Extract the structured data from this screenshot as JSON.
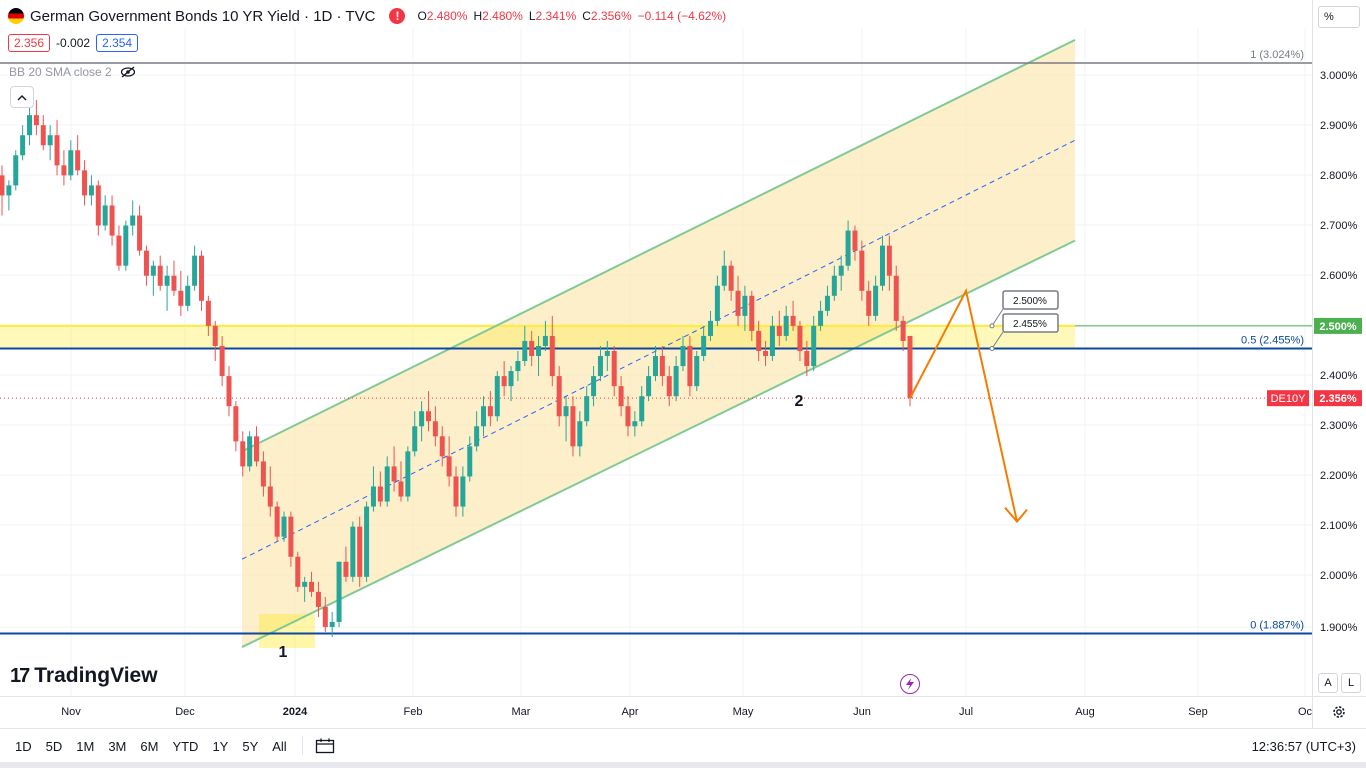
{
  "header": {
    "title": "German Government Bonds 10 YR Yield · 1D · TVC",
    "ohlc": [
      {
        "k": "O",
        "v": "2.480%"
      },
      {
        "k": "H",
        "v": "2.480%"
      },
      {
        "k": "L",
        "v": "2.341%"
      },
      {
        "k": "C",
        "v": "2.356%"
      }
    ],
    "change": "−0.114 (−4.62%)",
    "alert_glyph": "!"
  },
  "prices": {
    "bid": "2.356",
    "spread": "-0.002",
    "ask": "2.354"
  },
  "indicator": {
    "label": "BB 20 SMA close 2"
  },
  "logo": {
    "mark": "17",
    "text": "TradingView"
  },
  "scale": {
    "percent_button": "%",
    "auto_button": "A",
    "log_button": "L"
  },
  "timeframes": [
    "1D",
    "5D",
    "1M",
    "3M",
    "6M",
    "YTD",
    "1Y",
    "5Y",
    "All"
  ],
  "clock": "12:36:57 (UTC+3)",
  "icons": {
    "collapse": "chevron-up-icon",
    "gear": "gear-icon",
    "eye": "eye-off-icon",
    "calendar": "calendar-range-icon",
    "lightning": "lightning-icon"
  },
  "colors": {
    "up": "#26a69a",
    "down": "#ef5350",
    "channel": "#81c995",
    "channel_fill": "#fbe9b7",
    "zone": "#ffeb3b",
    "fib": "#0d47a1",
    "projection": "#f57c00",
    "last_price": "#f23645"
  },
  "chart_data": {
    "type": "candlestick",
    "y_axis_unit": "%",
    "y_ticks": [
      "3.000%",
      "2.900%",
      "2.800%",
      "2.700%",
      "2.600%",
      "2.500%",
      "2.400%",
      "2.300%",
      "2.200%",
      "2.100%",
      "2.000%",
      "1.900%"
    ],
    "x_ticks": [
      "Nov",
      "Dec",
      "2024",
      "Feb",
      "Mar",
      "Apr",
      "May",
      "Jun",
      "Jul",
      "Aug",
      "Sep",
      "Oc"
    ],
    "fib_levels": [
      {
        "label": "1 (3.024%)",
        "value": 3.024
      },
      {
        "label": "0.5 (2.455%)",
        "value": 2.455
      },
      {
        "label": "0 (1.887%)",
        "value": 1.887
      }
    ],
    "horizontal_tags": [
      {
        "label": "2.500%",
        "value": 2.5
      },
      {
        "label": "2.455%",
        "value": 2.455
      }
    ],
    "axis_tags": [
      {
        "label": "2.500%",
        "value": 2.5,
        "color": "#4caf50"
      },
      {
        "symbol": "DE10Y",
        "label": "2.356%",
        "value": 2.356,
        "color": "#f23645"
      }
    ],
    "point_labels": [
      {
        "text": "1"
      },
      {
        "text": "2"
      }
    ],
    "candles": [
      [
        2.8,
        2.82,
        2.72,
        2.76
      ],
      [
        2.76,
        2.79,
        2.73,
        2.78
      ],
      [
        2.78,
        2.85,
        2.77,
        2.84
      ],
      [
        2.84,
        2.9,
        2.83,
        2.88
      ],
      [
        2.88,
        2.94,
        2.86,
        2.92
      ],
      [
        2.92,
        2.95,
        2.88,
        2.9
      ],
      [
        2.9,
        2.92,
        2.85,
        2.86
      ],
      [
        2.86,
        2.9,
        2.83,
        2.88
      ],
      [
        2.88,
        2.91,
        2.8,
        2.82
      ],
      [
        2.82,
        2.85,
        2.78,
        2.8
      ],
      [
        2.8,
        2.87,
        2.79,
        2.85
      ],
      [
        2.85,
        2.88,
        2.8,
        2.81
      ],
      [
        2.81,
        2.83,
        2.74,
        2.76
      ],
      [
        2.76,
        2.8,
        2.74,
        2.78
      ],
      [
        2.78,
        2.79,
        2.68,
        2.7
      ],
      [
        2.7,
        2.76,
        2.69,
        2.74
      ],
      [
        2.74,
        2.76,
        2.66,
        2.68
      ],
      [
        2.68,
        2.7,
        2.61,
        2.62
      ],
      [
        2.62,
        2.71,
        2.61,
        2.7
      ],
      [
        2.7,
        2.75,
        2.68,
        2.72
      ],
      [
        2.72,
        2.74,
        2.64,
        2.65
      ],
      [
        2.65,
        2.66,
        2.58,
        2.6
      ],
      [
        2.6,
        2.63,
        2.56,
        2.62
      ],
      [
        2.62,
        2.64,
        2.57,
        2.58
      ],
      [
        2.58,
        2.62,
        2.53,
        2.6
      ],
      [
        2.6,
        2.63,
        2.56,
        2.57
      ],
      [
        2.57,
        2.61,
        2.52,
        2.54
      ],
      [
        2.54,
        2.6,
        2.53,
        2.58
      ],
      [
        2.58,
        2.66,
        2.57,
        2.64
      ],
      [
        2.64,
        2.65,
        2.53,
        2.55
      ],
      [
        2.55,
        2.56,
        2.48,
        2.5
      ],
      [
        2.5,
        2.51,
        2.43,
        2.46
      ],
      [
        2.46,
        2.48,
        2.38,
        2.4
      ],
      [
        2.4,
        2.42,
        2.32,
        2.34
      ],
      [
        2.34,
        2.35,
        2.25,
        2.27
      ],
      [
        2.27,
        2.29,
        2.2,
        2.22
      ],
      [
        2.22,
        2.29,
        2.21,
        2.28
      ],
      [
        2.28,
        2.3,
        2.22,
        2.23
      ],
      [
        2.23,
        2.25,
        2.16,
        2.18
      ],
      [
        2.18,
        2.22,
        2.12,
        2.14
      ],
      [
        2.14,
        2.15,
        2.07,
        2.08
      ],
      [
        2.08,
        2.13,
        2.07,
        2.12
      ],
      [
        2.12,
        2.13,
        2.02,
        2.04
      ],
      [
        2.04,
        2.05,
        1.97,
        1.98
      ],
      [
        1.98,
        2.0,
        1.95,
        1.99
      ],
      [
        1.99,
        2.01,
        1.96,
        1.97
      ],
      [
        1.97,
        1.99,
        1.92,
        1.94
      ],
      [
        1.94,
        1.96,
        1.89,
        1.9
      ],
      [
        1.9,
        1.93,
        1.88,
        1.91
      ],
      [
        1.91,
        2.03,
        1.9,
        2.03
      ],
      [
        2.03,
        2.06,
        1.99,
        2.0
      ],
      [
        2.0,
        2.11,
        1.99,
        2.1
      ],
      [
        2.1,
        2.12,
        1.98,
        2.0
      ],
      [
        2.0,
        2.15,
        1.99,
        2.14
      ],
      [
        2.14,
        2.22,
        2.13,
        2.18
      ],
      [
        2.18,
        2.21,
        2.14,
        2.15
      ],
      [
        2.15,
        2.24,
        2.14,
        2.22
      ],
      [
        2.22,
        2.26,
        2.17,
        2.19
      ],
      [
        2.19,
        2.23,
        2.15,
        2.16
      ],
      [
        2.16,
        2.26,
        2.15,
        2.25
      ],
      [
        2.25,
        2.33,
        2.24,
        2.3
      ],
      [
        2.3,
        2.35,
        2.27,
        2.33
      ],
      [
        2.33,
        2.37,
        2.29,
        2.31
      ],
      [
        2.31,
        2.34,
        2.26,
        2.28
      ],
      [
        2.28,
        2.3,
        2.22,
        2.24
      ],
      [
        2.24,
        2.28,
        2.18,
        2.2
      ],
      [
        2.2,
        2.22,
        2.12,
        2.14
      ],
      [
        2.14,
        2.22,
        2.12,
        2.2
      ],
      [
        2.2,
        2.28,
        2.19,
        2.26
      ],
      [
        2.26,
        2.33,
        2.25,
        2.3
      ],
      [
        2.3,
        2.36,
        2.28,
        2.34
      ],
      [
        2.34,
        2.37,
        2.3,
        2.32
      ],
      [
        2.32,
        2.41,
        2.31,
        2.4
      ],
      [
        2.4,
        2.43,
        2.36,
        2.38
      ],
      [
        2.38,
        2.42,
        2.35,
        2.41
      ],
      [
        2.41,
        2.45,
        2.39,
        2.43
      ],
      [
        2.43,
        2.5,
        2.42,
        2.47
      ],
      [
        2.47,
        2.49,
        2.42,
        2.44
      ],
      [
        2.44,
        2.48,
        2.4,
        2.46
      ],
      [
        2.46,
        2.51,
        2.45,
        2.48
      ],
      [
        2.48,
        2.52,
        2.38,
        2.4
      ],
      [
        2.4,
        2.42,
        2.3,
        2.32
      ],
      [
        2.32,
        2.36,
        2.27,
        2.34
      ],
      [
        2.34,
        2.36,
        2.24,
        2.26
      ],
      [
        2.26,
        2.33,
        2.24,
        2.31
      ],
      [
        2.31,
        2.38,
        2.3,
        2.36
      ],
      [
        2.36,
        2.42,
        2.34,
        2.4
      ],
      [
        2.4,
        2.46,
        2.39,
        2.44
      ],
      [
        2.44,
        2.47,
        2.41,
        2.45
      ],
      [
        2.45,
        2.46,
        2.36,
        2.38
      ],
      [
        2.38,
        2.4,
        2.32,
        2.34
      ],
      [
        2.34,
        2.36,
        2.28,
        2.3
      ],
      [
        2.3,
        2.33,
        2.28,
        2.31
      ],
      [
        2.31,
        2.38,
        2.3,
        2.36
      ],
      [
        2.36,
        2.42,
        2.35,
        2.4
      ],
      [
        2.4,
        2.46,
        2.39,
        2.44
      ],
      [
        2.44,
        2.46,
        2.38,
        2.4
      ],
      [
        2.4,
        2.42,
        2.34,
        2.36
      ],
      [
        2.36,
        2.44,
        2.35,
        2.42
      ],
      [
        2.42,
        2.48,
        2.41,
        2.46
      ],
      [
        2.46,
        2.48,
        2.36,
        2.38
      ],
      [
        2.38,
        2.45,
        2.37,
        2.44
      ],
      [
        2.44,
        2.5,
        2.43,
        2.48
      ],
      [
        2.48,
        2.53,
        2.47,
        2.51
      ],
      [
        2.51,
        2.6,
        2.5,
        2.58
      ],
      [
        2.58,
        2.65,
        2.57,
        2.62
      ],
      [
        2.62,
        2.63,
        2.55,
        2.57
      ],
      [
        2.57,
        2.6,
        2.5,
        2.52
      ],
      [
        2.52,
        2.58,
        2.49,
        2.56
      ],
      [
        2.56,
        2.57,
        2.47,
        2.49
      ],
      [
        2.49,
        2.51,
        2.43,
        2.45
      ],
      [
        2.45,
        2.47,
        2.42,
        2.44
      ],
      [
        2.44,
        2.52,
        2.43,
        2.5
      ],
      [
        2.5,
        2.53,
        2.46,
        2.48
      ],
      [
        2.48,
        2.54,
        2.47,
        2.52
      ],
      [
        2.52,
        2.55,
        2.49,
        2.5
      ],
      [
        2.5,
        2.51,
        2.43,
        2.45
      ],
      [
        2.45,
        2.47,
        2.4,
        2.42
      ],
      [
        2.42,
        2.52,
        2.41,
        2.5
      ],
      [
        2.5,
        2.55,
        2.49,
        2.53
      ],
      [
        2.53,
        2.58,
        2.52,
        2.56
      ],
      [
        2.56,
        2.62,
        2.55,
        2.6
      ],
      [
        2.6,
        2.64,
        2.57,
        2.62
      ],
      [
        2.62,
        2.71,
        2.61,
        2.69
      ],
      [
        2.69,
        2.7,
        2.63,
        2.65
      ],
      [
        2.65,
        2.67,
        2.55,
        2.57
      ],
      [
        2.57,
        2.59,
        2.5,
        2.52
      ],
      [
        2.52,
        2.6,
        2.51,
        2.58
      ],
      [
        2.58,
        2.68,
        2.57,
        2.66
      ],
      [
        2.66,
        2.68,
        2.57,
        2.6
      ],
      [
        2.6,
        2.62,
        2.49,
        2.51
      ],
      [
        2.51,
        2.52,
        2.45,
        2.47
      ],
      [
        2.48,
        2.48,
        2.34,
        2.356
      ]
    ],
    "trend_channel": {
      "lower": [
        [
          1.86,
          2.43
        ],
        [
          2.57,
          2.67
        ]
      ],
      "upper": [
        [
          2.25,
          3.01
        ],
        [
          3.04,
          3.07
        ]
      ]
    },
    "projection_path": [
      2.356,
      2.57,
      2.11
    ],
    "yaxis_range": [
      1.83,
      3.09
    ]
  }
}
